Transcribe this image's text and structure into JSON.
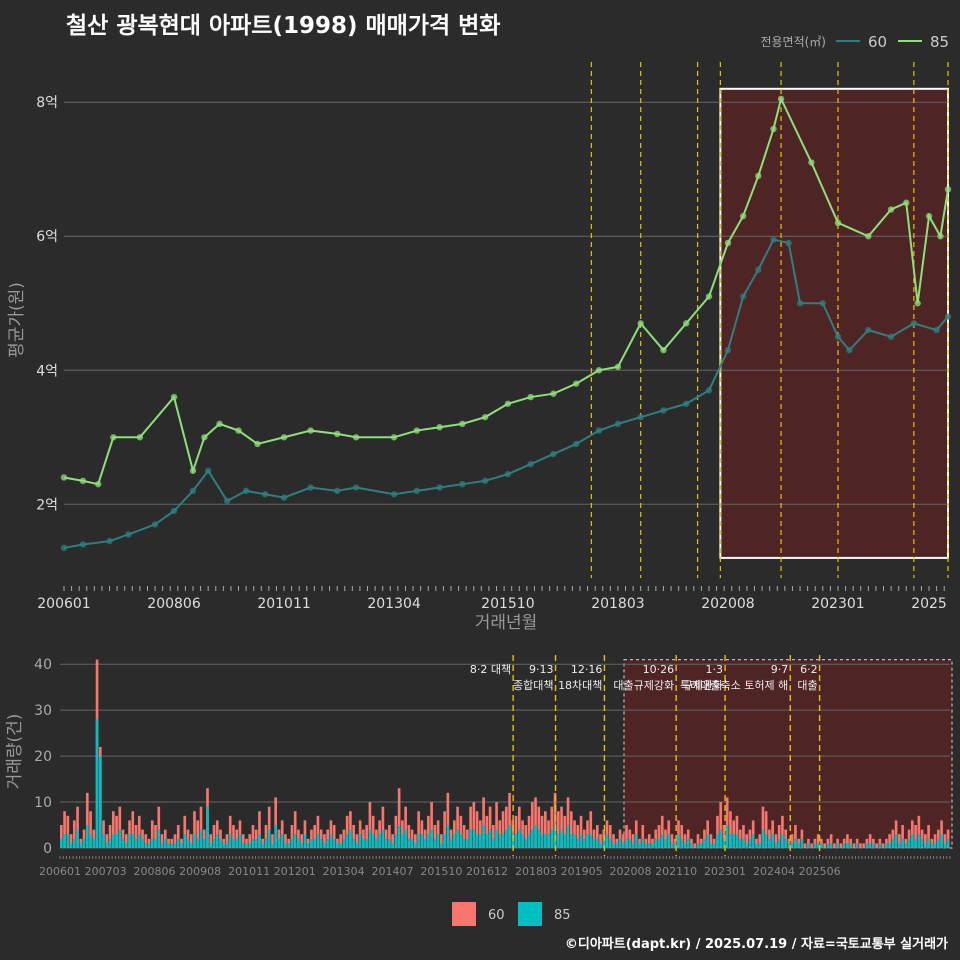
{
  "title": "철산 광복현대 아파트(1998) 매매가격 변화",
  "source": "©디아파트(dapt.kr) / 2025.07.19 / 자료=국토교통부 실거래가",
  "colors": {
    "bg": "#2b2b2b",
    "grid": "#666666",
    "s60_line": "#2f7f80",
    "s85_line": "#8ee07a",
    "bar60": "#f8766d",
    "bar85": "#00bfc4",
    "policy": "#e6c200",
    "highlight": "#6b1f1f"
  },
  "chart_data": [
    {
      "type": "line",
      "title": "",
      "xlabel": "거래년월",
      "ylabel": "평균가(원)",
      "x_ticks": [
        "200601",
        "200806",
        "201011",
        "201304",
        "201510",
        "201803",
        "202008",
        "202301",
        "2025"
      ],
      "y_ticks": [
        "2억",
        "4억",
        "6억",
        "8억"
      ],
      "y_tick_values": [
        2,
        4,
        6,
        8
      ],
      "ylim": [
        0.9,
        8.6
      ],
      "xlim": [
        "2006-01",
        "2025-06"
      ],
      "legend": {
        "title": "전용면적(㎡)",
        "position": "top-right",
        "entries": [
          "60",
          "85"
        ]
      },
      "highlight_period": [
        "2020-06",
        "2025-06"
      ],
      "policy_lines": [
        "2017-08",
        "2018-09",
        "2019-12",
        "2020-06",
        "2021-10",
        "2023-01",
        "2024-09",
        "2025-06"
      ],
      "series": [
        {
          "name": "60",
          "points": [
            [
              "2006-01",
              1.35
            ],
            [
              "2006-06",
              1.4
            ],
            [
              "2007-01",
              1.45
            ],
            [
              "2007-06",
              1.55
            ],
            [
              "2008-01",
              1.7
            ],
            [
              "2008-06",
              1.9
            ],
            [
              "2008-11",
              2.2
            ],
            [
              "2009-03",
              2.5
            ],
            [
              "2009-08",
              2.05
            ],
            [
              "2010-01",
              2.2
            ],
            [
              "2010-06",
              2.15
            ],
            [
              "2010-11",
              2.1
            ],
            [
              "2011-06",
              2.25
            ],
            [
              "2012-01",
              2.2
            ],
            [
              "2012-06",
              2.25
            ],
            [
              "2013-04",
              2.15
            ],
            [
              "2013-10",
              2.2
            ],
            [
              "2014-04",
              2.25
            ],
            [
              "2014-10",
              2.3
            ],
            [
              "2015-04",
              2.35
            ],
            [
              "2015-10",
              2.45
            ],
            [
              "2016-04",
              2.6
            ],
            [
              "2016-10",
              2.75
            ],
            [
              "2017-04",
              2.9
            ],
            [
              "2017-10",
              3.1
            ],
            [
              "2018-03",
              3.2
            ],
            [
              "2018-09",
              3.3
            ],
            [
              "2019-03",
              3.4
            ],
            [
              "2019-09",
              3.5
            ],
            [
              "2020-03",
              3.7
            ],
            [
              "2020-08",
              4.3
            ],
            [
              "2020-12",
              5.1
            ],
            [
              "2021-04",
              5.5
            ],
            [
              "2021-08",
              5.95
            ],
            [
              "2021-12",
              5.9
            ],
            [
              "2022-03",
              5.0
            ],
            [
              "2022-09",
              5.0
            ],
            [
              "2023-01",
              4.5
            ],
            [
              "2023-04",
              4.3
            ],
            [
              "2023-09",
              4.6
            ],
            [
              "2024-03",
              4.5
            ],
            [
              "2024-09",
              4.7
            ],
            [
              "2025-03",
              4.6
            ],
            [
              "2025-06",
              4.8
            ]
          ]
        },
        {
          "name": "85",
          "points": [
            [
              "2006-01",
              2.4
            ],
            [
              "2006-06",
              2.35
            ],
            [
              "2006-10",
              2.3
            ],
            [
              "2007-02",
              3.0
            ],
            [
              "2007-09",
              3.0
            ],
            [
              "2008-06",
              3.6
            ],
            [
              "2008-11",
              2.5
            ],
            [
              "2009-02",
              3.0
            ],
            [
              "2009-06",
              3.2
            ],
            [
              "2009-11",
              3.1
            ],
            [
              "2010-04",
              2.9
            ],
            [
              "2010-11",
              3.0
            ],
            [
              "2011-06",
              3.1
            ],
            [
              "2012-01",
              3.05
            ],
            [
              "2012-06",
              3.0
            ],
            [
              "2013-04",
              3.0
            ],
            [
              "2013-10",
              3.1
            ],
            [
              "2014-04",
              3.15
            ],
            [
              "2014-10",
              3.2
            ],
            [
              "2015-04",
              3.3
            ],
            [
              "2015-10",
              3.5
            ],
            [
              "2016-04",
              3.6
            ],
            [
              "2016-10",
              3.65
            ],
            [
              "2017-04",
              3.8
            ],
            [
              "2017-10",
              4.0
            ],
            [
              "2018-03",
              4.05
            ],
            [
              "2018-09",
              4.7
            ],
            [
              "2019-03",
              4.3
            ],
            [
              "2019-09",
              4.7
            ],
            [
              "2020-03",
              5.1
            ],
            [
              "2020-08",
              5.9
            ],
            [
              "2020-12",
              6.3
            ],
            [
              "2021-04",
              6.9
            ],
            [
              "2021-08",
              7.6
            ],
            [
              "2021-10",
              8.05
            ],
            [
              "2022-06",
              7.1
            ],
            [
              "2023-01",
              6.2
            ],
            [
              "2023-09",
              6.0
            ],
            [
              "2024-03",
              6.4
            ],
            [
              "2024-07",
              6.5
            ],
            [
              "2024-10",
              5.0
            ],
            [
              "2025-01",
              6.3
            ],
            [
              "2025-04",
              6.0
            ],
            [
              "2025-06",
              6.7
            ]
          ]
        }
      ]
    },
    {
      "type": "bar",
      "title": "",
      "xlabel": "",
      "ylabel": "거래량(건)",
      "y_ticks": [
        "0",
        "10",
        "20",
        "30",
        "40"
      ],
      "ylim": [
        0,
        42
      ],
      "x_ticks": [
        "200601",
        "200703",
        "200806",
        "200908",
        "201011",
        "201201",
        "201304",
        "201407",
        "201510",
        "201612",
        "201803",
        "201905",
        "202008",
        "202110",
        "202301",
        "202404",
        "202506"
      ],
      "legend": {
        "position": "bottom",
        "entries": [
          "60",
          "85"
        ]
      },
      "annotations": [
        {
          "date": "2017-08",
          "lines": [
            "8·2 대책"
          ]
        },
        {
          "date": "2018-09",
          "lines": [
            "9·13",
            "종합대책"
          ]
        },
        {
          "date": "2019-12",
          "lines": [
            "12·16",
            "18차대책"
          ]
        },
        {
          "date": "2021-10",
          "lines": [
            "10·26",
            "대출규제강화"
          ]
        },
        {
          "date": "2023-01",
          "lines": [
            "1·3",
            "규제완화"
          ]
        },
        {
          "date": "2024-09",
          "lines": [
            "9·7",
            "특례대출축소 토허제 해"
          ]
        },
        {
          "date": "2025-06",
          "lines": [
            "6·2",
            "대출"
          ]
        }
      ],
      "series": [
        {
          "name": "60",
          "monthly_totals": [
            5,
            8,
            7,
            3,
            6,
            9,
            2,
            4,
            12,
            8,
            4,
            41,
            22,
            6,
            3,
            5,
            8,
            7,
            9,
            4,
            3,
            6,
            8,
            5,
            7,
            4,
            3,
            2,
            6,
            5,
            9,
            3,
            4,
            2,
            2,
            3,
            5,
            2,
            7,
            4,
            3,
            8,
            6,
            9,
            4,
            13,
            3,
            5,
            6,
            4,
            2,
            3,
            7,
            5,
            4,
            6,
            3,
            2,
            3,
            5,
            4,
            8,
            2,
            5,
            9,
            3,
            11,
            4,
            6,
            3,
            2,
            5,
            8,
            4,
            3,
            6,
            2,
            4,
            5,
            7,
            4,
            3,
            4,
            6,
            5,
            2,
            3,
            4,
            7,
            8,
            5,
            3,
            6,
            4,
            5,
            10,
            7,
            4,
            6,
            9,
            4,
            5,
            3,
            7,
            13,
            6,
            9,
            5,
            4,
            3,
            8,
            6,
            4,
            7,
            10,
            5,
            6,
            3,
            8,
            12,
            4,
            6,
            9,
            7,
            5,
            4,
            9,
            10,
            8,
            6,
            11,
            7,
            9,
            5,
            10,
            6,
            8,
            9,
            12,
            6,
            7,
            9,
            6,
            5,
            7,
            10,
            11,
            9,
            7,
            8,
            6,
            9,
            12,
            8,
            9,
            7,
            11,
            8,
            6,
            5,
            7,
            4,
            6,
            8,
            4,
            5,
            3,
            4,
            6,
            5,
            3,
            2,
            4,
            3,
            5,
            4,
            3,
            6,
            2,
            5,
            2,
            3,
            2,
            4,
            5,
            7,
            4,
            6,
            3,
            2,
            6,
            5,
            3,
            4,
            2,
            1,
            3,
            2,
            4,
            6,
            3,
            2,
            7,
            10,
            5,
            11,
            8,
            6,
            7,
            4,
            5,
            3,
            4,
            6,
            2,
            3,
            9,
            8,
            4,
            6,
            3,
            5,
            7,
            4,
            2,
            3,
            5,
            2,
            4,
            1,
            2,
            1,
            2,
            3,
            2,
            1,
            2,
            3,
            1,
            2,
            1,
            2,
            3,
            2,
            1,
            2,
            1,
            1,
            2,
            3,
            2,
            1,
            2,
            1,
            2,
            3,
            4,
            6,
            3,
            5,
            2,
            4,
            6,
            5,
            7,
            4,
            3,
            5,
            2,
            3,
            4,
            6,
            3,
            4
          ]
        },
        {
          "name": "85",
          "monthly_totals": [
            2,
            3,
            3,
            1,
            2,
            4,
            1,
            2,
            5,
            3,
            2,
            28,
            20,
            3,
            1,
            2,
            3,
            3,
            4,
            2,
            1,
            3,
            3,
            2,
            3,
            2,
            1,
            1,
            2,
            2,
            4,
            1,
            2,
            1,
            1,
            1,
            2,
            1,
            3,
            2,
            1,
            3,
            2,
            4,
            2,
            9,
            1,
            2,
            3,
            2,
            1,
            1,
            3,
            2,
            2,
            3,
            1,
            1,
            1,
            2,
            2,
            3,
            1,
            2,
            4,
            1,
            5,
            2,
            3,
            1,
            1,
            2,
            3,
            2,
            1,
            3,
            1,
            2,
            2,
            3,
            2,
            1,
            2,
            3,
            2,
            1,
            1,
            2,
            3,
            4,
            2,
            1,
            3,
            2,
            2,
            4,
            3,
            2,
            3,
            4,
            2,
            2,
            1,
            3,
            5,
            3,
            4,
            2,
            2,
            1,
            3,
            3,
            2,
            3,
            4,
            2,
            3,
            1,
            3,
            5,
            2,
            3,
            4,
            3,
            2,
            2,
            4,
            4,
            3,
            3,
            5,
            3,
            4,
            2,
            4,
            3,
            3,
            4,
            5,
            3,
            3,
            4,
            3,
            2,
            3,
            4,
            5,
            4,
            3,
            3,
            3,
            4,
            5,
            3,
            4,
            3,
            5,
            3,
            3,
            2,
            3,
            2,
            3,
            3,
            2,
            2,
            1,
            2,
            3,
            2,
            1,
            1,
            2,
            1,
            2,
            2,
            1,
            3,
            1,
            2,
            1,
            1,
            1,
            2,
            2,
            3,
            2,
            3,
            1,
            1,
            3,
            2,
            1,
            2,
            1,
            0,
            1,
            1,
            2,
            3,
            1,
            1,
            3,
            4,
            2,
            5,
            3,
            3,
            3,
            2,
            2,
            1,
            2,
            3,
            1,
            1,
            4,
            3,
            2,
            3,
            1,
            2,
            3,
            2,
            1,
            1,
            2,
            1,
            2,
            0,
            1,
            0,
            1,
            1,
            1,
            0,
            1,
            1,
            0,
            1,
            0,
            1,
            1,
            1,
            0,
            1,
            0,
            0,
            1,
            1,
            1,
            0,
            1,
            0,
            1,
            1,
            2,
            3,
            1,
            2,
            1,
            2,
            3,
            2,
            3,
            2,
            1,
            2,
            1,
            1,
            2,
            3,
            1,
            2
          ]
        }
      ]
    }
  ]
}
